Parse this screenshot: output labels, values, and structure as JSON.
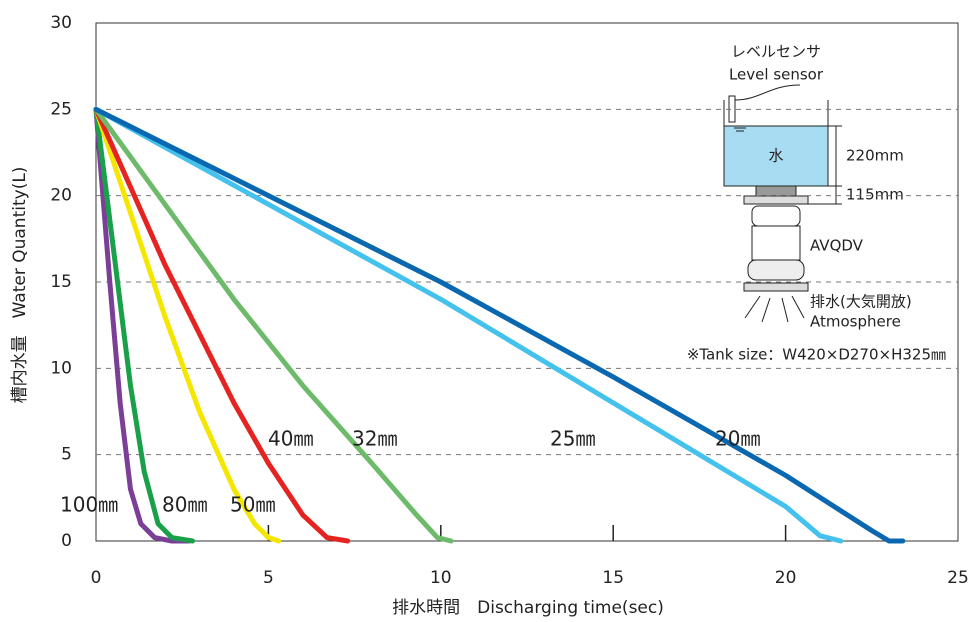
{
  "chart_data": {
    "type": "line",
    "xlabel": "排水時間　Discharging time(sec)",
    "ylabel": "槽内水量　Water Quantity(L)",
    "xlim": [
      0,
      25
    ],
    "xticks": [
      0,
      5,
      10,
      15,
      20,
      25
    ],
    "ylim": [
      0,
      30
    ],
    "yticks": [
      0,
      5,
      10,
      15,
      20,
      25,
      30
    ],
    "grid": true,
    "series": [
      {
        "name": "100㎜",
        "color": "#7b3f98",
        "x": [
          0,
          0.4,
          0.7,
          1,
          1.3,
          1.7,
          2.2,
          2.7
        ],
        "values": [
          25,
          15,
          8,
          3,
          1,
          0.2,
          0,
          0
        ]
      },
      {
        "name": "80㎜",
        "color": "#1aa04a",
        "x": [
          0,
          0.5,
          1,
          1.4,
          1.8,
          2.2,
          2.8
        ],
        "values": [
          25,
          17,
          9,
          4,
          1,
          0.2,
          0
        ]
      },
      {
        "name": "50㎜",
        "color": "#f5e600",
        "x": [
          0,
          1,
          2,
          3,
          4,
          4.6,
          5,
          5.3
        ],
        "values": [
          25,
          19,
          13,
          7.5,
          3,
          1,
          0.2,
          0
        ]
      },
      {
        "name": "40㎜",
        "color": "#e52320",
        "x": [
          0,
          1,
          2,
          3,
          4,
          5,
          6,
          6.7,
          7.3
        ],
        "values": [
          25,
          20.5,
          16,
          12,
          8,
          4.5,
          1.5,
          0.2,
          0
        ]
      },
      {
        "name": "32㎜",
        "color": "#6dbb6a",
        "x": [
          0,
          2,
          4,
          6,
          8,
          9.3,
          9.9,
          10.3
        ],
        "values": [
          25,
          19.5,
          14,
          9,
          4.5,
          1.5,
          0.2,
          0
        ]
      },
      {
        "name": "25㎜",
        "color": "#45c1ee",
        "x": [
          0,
          5,
          10,
          15,
          20,
          21,
          21.6
        ],
        "values": [
          25,
          19.5,
          14,
          8,
          2,
          0.3,
          0
        ]
      },
      {
        "name": "20㎜",
        "color": "#0a68b0",
        "x": [
          0,
          5,
          10,
          15,
          20,
          22.5,
          23,
          23.4
        ],
        "values": [
          25,
          20,
          15,
          9.5,
          3.8,
          0.6,
          0,
          0
        ]
      }
    ],
    "annotations": [
      "レベルセンサ",
      "Level sensor",
      "水",
      "220mm",
      "115mm",
      "AVQDV",
      "排水(大気開放)",
      "Atmosphere",
      "※Tank size：W420×D270×H325㎜"
    ]
  }
}
